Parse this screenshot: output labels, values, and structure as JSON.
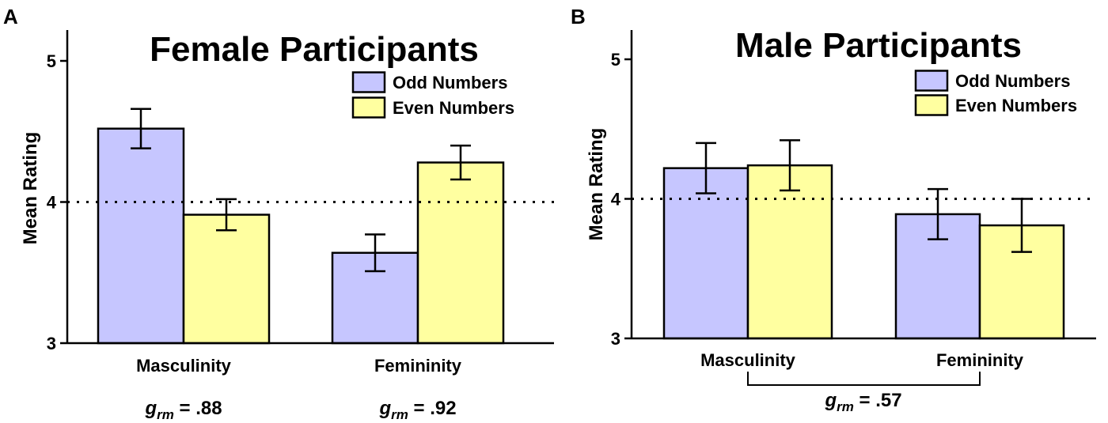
{
  "chart_data": [
    {
      "panel": "A",
      "type": "bar",
      "title": "Female Participants",
      "ylabel": "Mean Rating",
      "xlabel": "",
      "ylim": [
        3,
        5.2
      ],
      "yticks": [
        "3",
        "4",
        "5"
      ],
      "reference_line": 4,
      "categories": [
        "Masculinity",
        "Femininity"
      ],
      "series": [
        {
          "name": "Odd Numbers",
          "color": "#c6c6ff",
          "values": [
            4.52,
            3.64
          ],
          "errors": [
            0.14,
            0.13
          ]
        },
        {
          "name": "Even Numbers",
          "color": "#ffffa0",
          "values": [
            3.91,
            4.28
          ],
          "errors": [
            0.11,
            0.12
          ]
        }
      ],
      "legend_position": "top-right",
      "stats": [
        {
          "g": "g",
          "sub": "rm",
          "value": " = .88",
          "category": "Masculinity"
        },
        {
          "g": "g",
          "sub": "rm",
          "value": " = .92",
          "category": "Femininity"
        }
      ]
    },
    {
      "panel": "B",
      "type": "bar",
      "title": "Male Participants",
      "ylabel": "Mean Rating",
      "xlabel": "",
      "ylim": [
        3,
        5.2
      ],
      "yticks": [
        "3",
        "4",
        "5"
      ],
      "reference_line": 4,
      "categories": [
        "Masculinity",
        "Femininity"
      ],
      "series": [
        {
          "name": "Odd Numbers",
          "color": "#c6c6ff",
          "values": [
            4.22,
            3.89
          ],
          "errors": [
            0.18,
            0.18
          ]
        },
        {
          "name": "Even Numbers",
          "color": "#ffffa0",
          "values": [
            4.24,
            3.81
          ],
          "errors": [
            0.18,
            0.19
          ]
        }
      ],
      "legend_position": "top-right",
      "stats": [
        {
          "g": "g",
          "sub": "rm",
          "value": " = .57",
          "category": "both"
        }
      ]
    }
  ]
}
